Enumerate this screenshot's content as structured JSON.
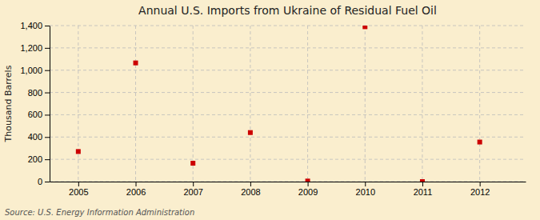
{
  "chart_data": {
    "type": "scatter",
    "title": "Annual U.S. Imports from Ukraine of Residual Fuel Oil",
    "ylabel": "Thousand Barrels",
    "source": "Source: U.S. Energy Information Administration",
    "x": [
      2005,
      2006,
      2007,
      2008,
      2009,
      2010,
      2011,
      2012
    ],
    "values": [
      270,
      1065,
      165,
      440,
      5,
      1390,
      0,
      355
    ],
    "color": "#cc0000",
    "marker": "square",
    "xlim": [
      2004.5,
      2012.8
    ],
    "xticks": [
      2005,
      2006,
      2007,
      2008,
      2009,
      2010,
      2011,
      2012
    ],
    "ylim": [
      0,
      1400
    ],
    "yticks": [
      0,
      200,
      400,
      600,
      800,
      {
        "value": 1000,
        "label": "1,000"
      },
      {
        "value": 1200,
        "label": "1,200"
      },
      {
        "value": 1400,
        "label": "1,400"
      }
    ],
    "grid": true
  }
}
